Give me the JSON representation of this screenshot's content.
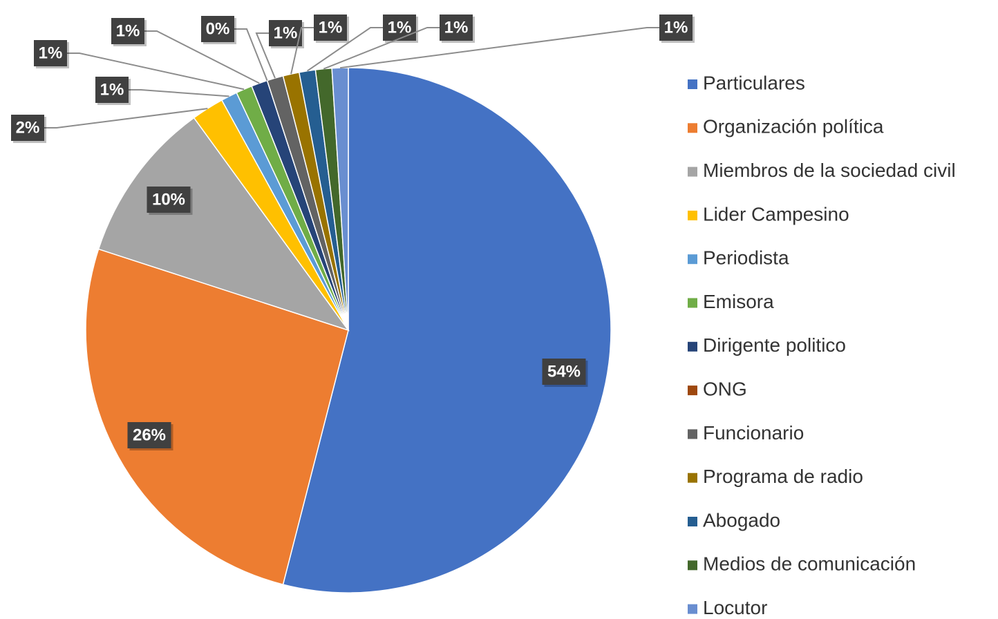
{
  "chart_data": {
    "type": "pie",
    "categories": [
      "Particulares",
      "Organización política",
      "Miembros de la sociedad civil",
      "Lider Campesino",
      "Periodista",
      "Emisora",
      "Dirigente politico",
      "ONG",
      "Funcionario",
      "Programa de radio",
      "Abogado",
      "Medios de comunicación",
      "Locutor"
    ],
    "values": [
      54,
      26,
      10,
      2,
      1,
      1,
      1,
      0,
      1,
      1,
      1,
      1,
      1
    ],
    "value_labels": [
      "54%",
      "26%",
      "10%",
      "2%",
      "1%",
      "1%",
      "1%",
      "0%",
      "1%",
      "1%",
      "1%",
      "1%",
      "1%"
    ],
    "colors": [
      "#4472c4",
      "#ed7d31",
      "#a5a5a5",
      "#ffc000",
      "#5b9bd5",
      "#70ad47",
      "#264478",
      "#9e480e",
      "#636363",
      "#997300",
      "#255e91",
      "#43682b",
      "#698ed0"
    ],
    "legend": "right"
  }
}
